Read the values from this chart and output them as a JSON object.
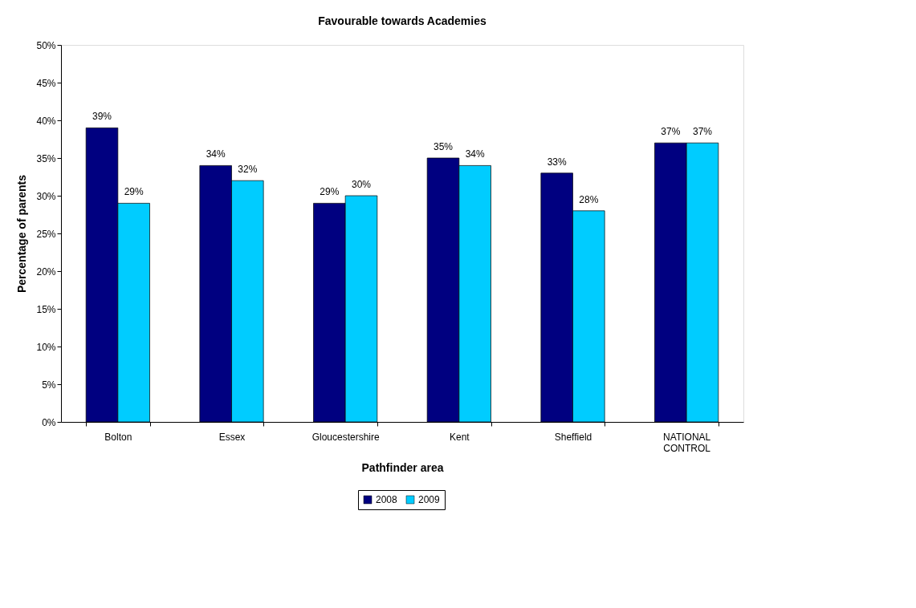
{
  "chart_data": {
    "type": "bar",
    "title": "Favourable towards Academies",
    "xlabel": "Pathfinder area",
    "ylabel": "Percentage of parents",
    "categories": [
      "Bolton",
      "Essex",
      "Gloucestershire",
      "Kent",
      "Sheffield",
      "NATIONAL CONTROL"
    ],
    "series": [
      {
        "name": "2008",
        "color": "#000080",
        "values": [
          39,
          34,
          29,
          35,
          33,
          37
        ],
        "value_labels": [
          "39%",
          "34%",
          "29%",
          "35%",
          "33%",
          "37%"
        ]
      },
      {
        "name": "2009",
        "color": "#00ccff",
        "values": [
          29,
          32,
          30,
          34,
          28,
          37
        ],
        "value_labels": [
          "29%",
          "32%",
          "30%",
          "34%",
          "28%",
          "37%"
        ]
      }
    ],
    "ylim": [
      0,
      50
    ],
    "yticks": [
      {
        "value": 0,
        "label": "0%"
      },
      {
        "value": 5,
        "label": "5%"
      },
      {
        "value": 10,
        "label": "10%"
      },
      {
        "value": 15,
        "label": "15%"
      },
      {
        "value": 20,
        "label": "20%"
      },
      {
        "value": 25,
        "label": "25%"
      },
      {
        "value": 30,
        "label": "30%"
      },
      {
        "value": 35,
        "label": "35%"
      },
      {
        "value": 40,
        "label": "40%"
      },
      {
        "value": 45,
        "label": "45%"
      },
      {
        "value": 50,
        "label": "50%"
      }
    ],
    "grid": false,
    "legend": "bottom"
  }
}
